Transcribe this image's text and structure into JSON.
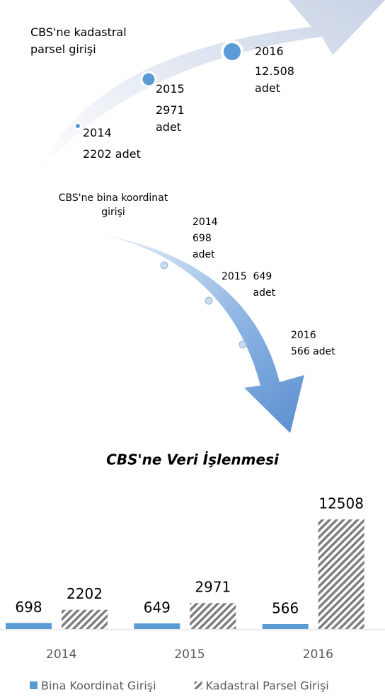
{
  "infographic": {
    "parcel": {
      "label": "CBS'ne kadastral parsel girişi",
      "points": [
        {
          "year": "2014",
          "amount": "2202 adet"
        },
        {
          "year": "2015",
          "amount": "2971 adet"
        },
        {
          "year": "2016",
          "amount": "12.508 adet"
        }
      ]
    },
    "building": {
      "label": "CBS'ne bina koordinat girişi",
      "points": [
        {
          "year": "2014",
          "amount": "698 adet"
        },
        {
          "year": "2015",
          "amount": "649 adet"
        },
        {
          "year": "2016",
          "amount": "566 adet"
        }
      ]
    }
  },
  "chart_data": {
    "type": "bar",
    "title": "CBS'ne Veri İşlenmesi",
    "categories": [
      "2014",
      "2015",
      "2016"
    ],
    "series": [
      {
        "name": "Bina Koordinat Girişi",
        "color": "#5b9bd5",
        "values": [
          698,
          649,
          566
        ]
      },
      {
        "name": "Kadastral Parsel Girişi",
        "color": "#7f7f7f",
        "hatch": true,
        "values": [
          2202,
          2971,
          12508
        ]
      }
    ],
    "legend": "bottom"
  }
}
